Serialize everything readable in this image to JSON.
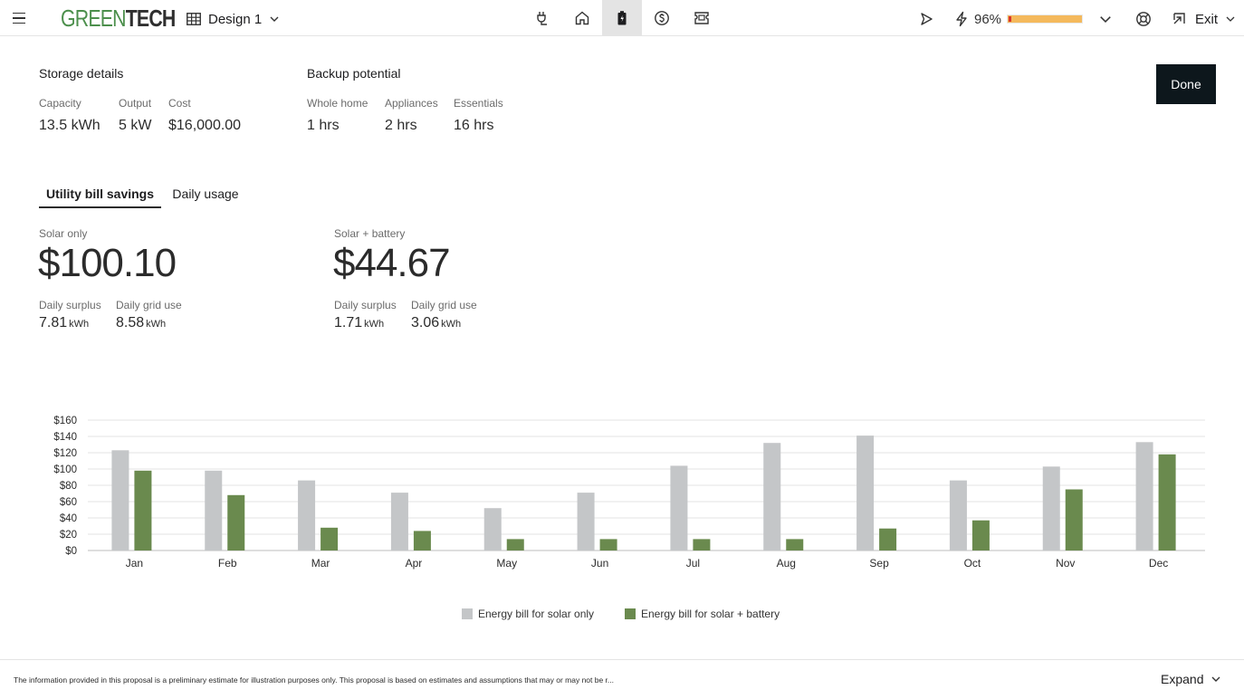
{
  "header": {
    "logo_green": "GREEN",
    "logo_dark": "TECH",
    "design_label": "Design 1",
    "battery_percent": "96%",
    "battery_level": 0.96,
    "exit_label": "Exit"
  },
  "storage": {
    "title": "Storage details",
    "capacity_label": "Capacity",
    "capacity_value": "13.5 kWh",
    "output_label": "Output",
    "output_value": "5 kW",
    "cost_label": "Cost",
    "cost_value": "$16,000.00"
  },
  "backup": {
    "title": "Backup potential",
    "whole_home_label": "Whole home",
    "whole_home_value": "1 hrs",
    "appliances_label": "Appliances",
    "appliances_value": "2 hrs",
    "essentials_label": "Essentials",
    "essentials_value": "16 hrs"
  },
  "done_label": "Done",
  "tabs": [
    {
      "label": "Utility bill savings",
      "active": true
    },
    {
      "label": "Daily usage",
      "active": false
    }
  ],
  "solar_only": {
    "label": "Solar only",
    "amount": "$100.10",
    "surplus_label": "Daily surplus",
    "surplus_value": "7.81",
    "grid_label": "Daily grid use",
    "grid_value": "8.58",
    "unit": "kWh"
  },
  "solar_battery": {
    "label": "Solar + battery",
    "amount": "$44.67",
    "surplus_label": "Daily surplus",
    "surplus_value": "1.71",
    "grid_label": "Daily grid use",
    "grid_value": "3.06",
    "unit": "kWh"
  },
  "chart_data": {
    "type": "bar",
    "categories": [
      "Jan",
      "Feb",
      "Mar",
      "Apr",
      "May",
      "Jun",
      "Jul",
      "Aug",
      "Sep",
      "Oct",
      "Nov",
      "Dec"
    ],
    "series": [
      {
        "name": "Energy bill for solar only",
        "color": "#c4c6c8",
        "values": [
          123,
          98,
          86,
          71,
          52,
          71,
          104,
          132,
          141,
          86,
          103,
          133
        ]
      },
      {
        "name": "Energy bill for solar + battery",
        "color": "#6a8a4e",
        "values": [
          98,
          68,
          28,
          24,
          14,
          14,
          14,
          14,
          27,
          37,
          75,
          118
        ]
      }
    ],
    "y_ticks": [
      "$0",
      "$20",
      "$40",
      "$60",
      "$80",
      "$100",
      "$120",
      "$140",
      "$160"
    ],
    "ylim": [
      0,
      160
    ],
    "grid": true,
    "legend_position": "bottom-center"
  },
  "footer": {
    "disclaimer": "The information provided in this proposal is a preliminary estimate for illustration purposes only. This proposal is based on estimates and assumptions that may or may not be r...",
    "expand_label": "Expand"
  }
}
